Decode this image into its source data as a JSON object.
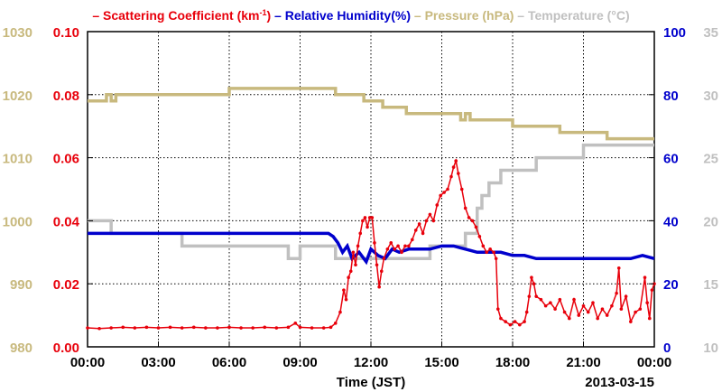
{
  "chart_data": {
    "type": "line",
    "title_parts": [
      {
        "text": "– Scattering Coefficient (km",
        "color": "#e8000b",
        "sup": "-1",
        "after": ")"
      },
      {
        "text": "– Relative Humidity(%)",
        "color": "#0000cc"
      },
      {
        "text": "– Pressure (hPa)",
        "color": "#c8b97e"
      },
      {
        "text": "– Temperature (°C)",
        "color": "#c0c0c0"
      }
    ],
    "xlabel": "Time (JST)",
    "date_label": "2013-03-15",
    "x_tick_labels": [
      "00:00",
      "03:00",
      "06:00",
      "09:00",
      "12:00",
      "15:00",
      "18:00",
      "21:00",
      "00:00"
    ],
    "xlim_hours": [
      0,
      24
    ],
    "axes": {
      "scattering": {
        "ticks": [
          "0.00",
          "0.02",
          "0.04",
          "0.06",
          "0.08",
          "0.10"
        ],
        "ylim": [
          0,
          0.1
        ],
        "color": "#e8000b"
      },
      "pressure": {
        "ticks": [
          "980",
          "990",
          "1000",
          "1010",
          "1020",
          "1030"
        ],
        "ylim": [
          980,
          1030
        ],
        "color": "#c8b97e"
      },
      "humidity": {
        "ticks": [
          "0",
          "20",
          "40",
          "60",
          "80",
          "100"
        ],
        "ylim": [
          0,
          100
        ],
        "color": "#0000cc"
      },
      "temperature": {
        "ticks": [
          "10",
          "15",
          "20",
          "25",
          "30",
          "35"
        ],
        "ylim": [
          10,
          35
        ],
        "color": "#c0c0c0"
      }
    },
    "grid": true,
    "series": [
      {
        "name": "Scattering Coefficient (km-1)",
        "color": "#e8000b",
        "axis": "scattering",
        "markers": true,
        "points": [
          [
            0.0,
            0.006
          ],
          [
            0.5,
            0.0058
          ],
          [
            1.0,
            0.006
          ],
          [
            1.5,
            0.0062
          ],
          [
            2.0,
            0.006
          ],
          [
            2.5,
            0.0062
          ],
          [
            3.0,
            0.006
          ],
          [
            3.5,
            0.0062
          ],
          [
            4.0,
            0.006
          ],
          [
            4.5,
            0.0062
          ],
          [
            5.0,
            0.006
          ],
          [
            5.5,
            0.006
          ],
          [
            6.0,
            0.0062
          ],
          [
            6.5,
            0.006
          ],
          [
            7.0,
            0.006
          ],
          [
            7.5,
            0.0062
          ],
          [
            8.0,
            0.006
          ],
          [
            8.5,
            0.0062
          ],
          [
            8.8,
            0.0075
          ],
          [
            9.0,
            0.0062
          ],
          [
            9.5,
            0.006
          ],
          [
            10.0,
            0.006
          ],
          [
            10.3,
            0.0062
          ],
          [
            10.5,
            0.0075
          ],
          [
            10.7,
            0.011
          ],
          [
            10.85,
            0.018
          ],
          [
            10.95,
            0.015
          ],
          [
            11.05,
            0.022
          ],
          [
            11.15,
            0.024
          ],
          [
            11.25,
            0.03
          ],
          [
            11.35,
            0.026
          ],
          [
            11.45,
            0.032
          ],
          [
            11.55,
            0.036
          ],
          [
            11.65,
            0.04
          ],
          [
            11.75,
            0.041
          ],
          [
            11.85,
            0.038
          ],
          [
            11.95,
            0.041
          ],
          [
            12.05,
            0.041
          ],
          [
            12.15,
            0.033
          ],
          [
            12.25,
            0.026
          ],
          [
            12.35,
            0.019
          ],
          [
            12.45,
            0.024
          ],
          [
            12.55,
            0.028
          ],
          [
            12.7,
            0.031
          ],
          [
            12.85,
            0.033
          ],
          [
            13.0,
            0.031
          ],
          [
            13.15,
            0.032
          ],
          [
            13.3,
            0.03
          ],
          [
            13.45,
            0.032
          ],
          [
            13.6,
            0.032
          ],
          [
            13.75,
            0.034
          ],
          [
            13.9,
            0.037
          ],
          [
            14.05,
            0.039
          ],
          [
            14.2,
            0.036
          ],
          [
            14.35,
            0.04
          ],
          [
            14.5,
            0.042
          ],
          [
            14.65,
            0.04
          ],
          [
            14.8,
            0.045
          ],
          [
            14.95,
            0.048
          ],
          [
            15.1,
            0.049
          ],
          [
            15.25,
            0.05
          ],
          [
            15.4,
            0.054
          ],
          [
            15.5,
            0.057
          ],
          [
            15.6,
            0.059
          ],
          [
            15.7,
            0.055
          ],
          [
            15.85,
            0.05
          ],
          [
            16.0,
            0.044
          ],
          [
            16.15,
            0.041
          ],
          [
            16.3,
            0.04
          ],
          [
            16.45,
            0.038
          ],
          [
            16.6,
            0.035
          ],
          [
            16.75,
            0.032
          ],
          [
            16.9,
            0.03
          ],
          [
            17.05,
            0.031
          ],
          [
            17.2,
            0.03
          ],
          [
            17.3,
            0.028
          ],
          [
            17.38,
            0.012
          ],
          [
            17.5,
            0.009
          ],
          [
            17.7,
            0.008
          ],
          [
            17.9,
            0.007
          ],
          [
            18.1,
            0.008
          ],
          [
            18.3,
            0.007
          ],
          [
            18.5,
            0.008
          ],
          [
            18.6,
            0.011
          ],
          [
            18.7,
            0.016
          ],
          [
            18.8,
            0.022
          ],
          [
            18.9,
            0.02
          ],
          [
            19.0,
            0.016
          ],
          [
            19.2,
            0.015
          ],
          [
            19.4,
            0.013
          ],
          [
            19.6,
            0.014
          ],
          [
            19.8,
            0.012
          ],
          [
            20.0,
            0.015
          ],
          [
            20.2,
            0.011
          ],
          [
            20.4,
            0.009
          ],
          [
            20.6,
            0.015
          ],
          [
            20.8,
            0.01
          ],
          [
            21.0,
            0.013
          ],
          [
            21.2,
            0.011
          ],
          [
            21.4,
            0.014
          ],
          [
            21.6,
            0.009
          ],
          [
            21.8,
            0.012
          ],
          [
            22.0,
            0.01
          ],
          [
            22.2,
            0.013
          ],
          [
            22.4,
            0.017
          ],
          [
            22.5,
            0.025
          ],
          [
            22.6,
            0.012
          ],
          [
            22.8,
            0.016
          ],
          [
            23.0,
            0.008
          ],
          [
            23.2,
            0.011
          ],
          [
            23.4,
            0.012
          ],
          [
            23.6,
            0.022
          ],
          [
            23.7,
            0.014
          ],
          [
            23.8,
            0.009
          ],
          [
            23.9,
            0.018
          ],
          [
            24.0,
            0.02
          ]
        ]
      },
      {
        "name": "Relative Humidity(%)",
        "color": "#0000cc",
        "axis": "humidity",
        "markers": false,
        "points": [
          [
            0.0,
            36
          ],
          [
            10.2,
            36
          ],
          [
            10.4,
            35
          ],
          [
            10.6,
            33
          ],
          [
            10.8,
            30
          ],
          [
            11.0,
            32
          ],
          [
            11.2,
            28
          ],
          [
            11.5,
            30
          ],
          [
            11.8,
            27
          ],
          [
            12.0,
            31
          ],
          [
            12.3,
            29
          ],
          [
            12.6,
            28
          ],
          [
            12.9,
            31
          ],
          [
            13.2,
            30
          ],
          [
            13.6,
            31
          ],
          [
            14.0,
            31
          ],
          [
            14.5,
            31
          ],
          [
            15.0,
            32
          ],
          [
            15.5,
            32
          ],
          [
            16.0,
            31
          ],
          [
            16.5,
            30
          ],
          [
            17.0,
            30
          ],
          [
            17.5,
            30
          ],
          [
            18.0,
            29
          ],
          [
            18.5,
            29
          ],
          [
            19.0,
            28
          ],
          [
            19.5,
            28
          ],
          [
            20.0,
            28
          ],
          [
            21.0,
            28
          ],
          [
            22.0,
            28
          ],
          [
            23.0,
            28
          ],
          [
            23.5,
            29
          ],
          [
            24.0,
            28
          ]
        ]
      },
      {
        "name": "Pressure (hPa)",
        "color": "#c8b97e",
        "axis": "pressure",
        "markers": false,
        "points": [
          [
            0.0,
            1019
          ],
          [
            0.8,
            1019
          ],
          [
            0.8,
            1020
          ],
          [
            1.0,
            1020
          ],
          [
            1.0,
            1019
          ],
          [
            1.2,
            1019
          ],
          [
            1.2,
            1020
          ],
          [
            6.0,
            1020
          ],
          [
            6.0,
            1021
          ],
          [
            10.5,
            1021
          ],
          [
            10.5,
            1020
          ],
          [
            11.7,
            1020
          ],
          [
            11.7,
            1019
          ],
          [
            12.5,
            1019
          ],
          [
            12.5,
            1018
          ],
          [
            13.5,
            1018
          ],
          [
            13.5,
            1017
          ],
          [
            15.8,
            1017
          ],
          [
            15.8,
            1016
          ],
          [
            16.0,
            1016
          ],
          [
            16.0,
            1017
          ],
          [
            16.2,
            1017
          ],
          [
            16.2,
            1016
          ],
          [
            18.0,
            1016
          ],
          [
            18.0,
            1015
          ],
          [
            20.0,
            1015
          ],
          [
            20.0,
            1014
          ],
          [
            22.0,
            1014
          ],
          [
            22.0,
            1013
          ],
          [
            24.0,
            1013
          ]
        ]
      },
      {
        "name": "Temperature (°C)",
        "color": "#c0c0c0",
        "axis": "temperature",
        "markers": false,
        "points": [
          [
            0.0,
            20
          ],
          [
            1.0,
            20
          ],
          [
            1.0,
            19
          ],
          [
            4.0,
            19
          ],
          [
            4.0,
            18
          ],
          [
            8.5,
            18
          ],
          [
            8.5,
            17
          ],
          [
            9.0,
            17
          ],
          [
            9.0,
            18
          ],
          [
            10.5,
            18
          ],
          [
            10.5,
            17
          ],
          [
            14.5,
            17
          ],
          [
            14.5,
            18
          ],
          [
            16.0,
            18
          ],
          [
            16.0,
            19
          ],
          [
            16.5,
            19
          ],
          [
            16.5,
            21
          ],
          [
            16.7,
            21
          ],
          [
            16.7,
            22
          ],
          [
            17.0,
            22
          ],
          [
            17.0,
            23
          ],
          [
            17.5,
            23
          ],
          [
            17.5,
            24
          ],
          [
            19.0,
            24
          ],
          [
            19.0,
            25
          ],
          [
            21.0,
            25
          ],
          [
            21.0,
            26
          ],
          [
            24.0,
            26
          ]
        ]
      }
    ]
  }
}
